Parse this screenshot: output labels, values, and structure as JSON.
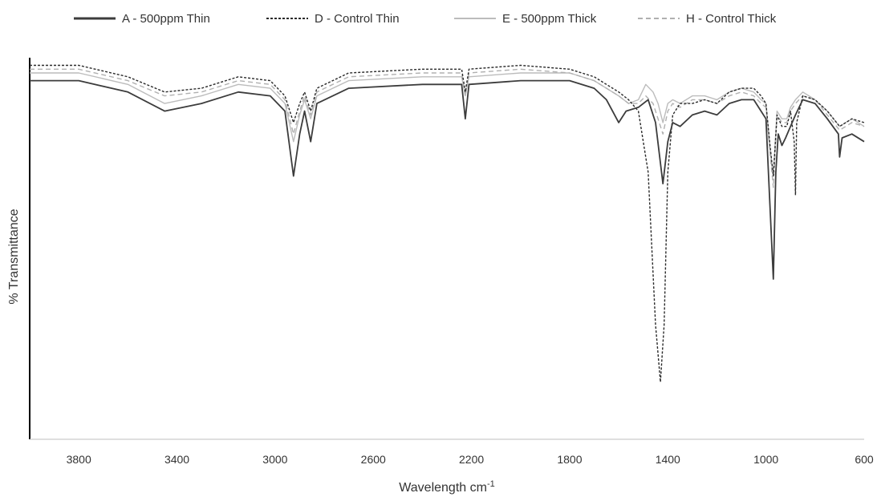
{
  "chart_data": {
    "type": "line",
    "title": "",
    "xlabel": "Wavelength cm",
    "xlabel_superscript": "-1",
    "ylabel": "% Transmittance",
    "xlim": [
      4000,
      600
    ],
    "x_reversed": true,
    "ylim": [
      0,
      100
    ],
    "y_tick_labels_shown": false,
    "grid": false,
    "legend_position": "top",
    "x_ticks": [
      3800,
      3400,
      3000,
      2600,
      2200,
      1800,
      1400,
      1000,
      600
    ],
    "series": [
      {
        "name": "A - 500ppm Thin",
        "color": "#3c3c3c",
        "dash": "solid",
        "points": [
          [
            4000,
            94
          ],
          [
            3800,
            94
          ],
          [
            3600,
            91
          ],
          [
            3450,
            86
          ],
          [
            3300,
            88
          ],
          [
            3150,
            91
          ],
          [
            3020,
            90
          ],
          [
            2960,
            86
          ],
          [
            2925,
            69
          ],
          [
            2900,
            80
          ],
          [
            2880,
            86
          ],
          [
            2855,
            78
          ],
          [
            2830,
            88
          ],
          [
            2700,
            92
          ],
          [
            2400,
            93
          ],
          [
            2240,
            93
          ],
          [
            2225,
            84
          ],
          [
            2210,
            93
          ],
          [
            2000,
            94
          ],
          [
            1800,
            94
          ],
          [
            1700,
            92
          ],
          [
            1650,
            89
          ],
          [
            1600,
            83
          ],
          [
            1570,
            86
          ],
          [
            1520,
            87
          ],
          [
            1480,
            89
          ],
          [
            1450,
            83
          ],
          [
            1420,
            67
          ],
          [
            1400,
            78
          ],
          [
            1380,
            83
          ],
          [
            1350,
            82
          ],
          [
            1300,
            85
          ],
          [
            1250,
            86
          ],
          [
            1200,
            85
          ],
          [
            1150,
            88
          ],
          [
            1100,
            89
          ],
          [
            1050,
            89
          ],
          [
            1020,
            86
          ],
          [
            1000,
            84
          ],
          [
            985,
            63
          ],
          [
            970,
            42
          ],
          [
            960,
            70
          ],
          [
            950,
            80
          ],
          [
            935,
            77
          ],
          [
            920,
            79
          ],
          [
            900,
            82
          ],
          [
            880,
            85
          ],
          [
            850,
            89
          ],
          [
            800,
            88
          ],
          [
            750,
            84
          ],
          [
            705,
            80
          ],
          [
            700,
            74
          ],
          [
            690,
            79
          ],
          [
            650,
            80
          ],
          [
            600,
            78
          ]
        ]
      },
      {
        "name": "D - Control Thin",
        "color": "#2a2a2a",
        "dash": "3,2",
        "points": [
          [
            4000,
            98
          ],
          [
            3800,
            98
          ],
          [
            3600,
            95
          ],
          [
            3450,
            91
          ],
          [
            3300,
            92
          ],
          [
            3150,
            95
          ],
          [
            3020,
            94
          ],
          [
            2960,
            90
          ],
          [
            2925,
            83
          ],
          [
            2900,
            88
          ],
          [
            2880,
            91
          ],
          [
            2855,
            86
          ],
          [
            2830,
            92
          ],
          [
            2700,
            96
          ],
          [
            2400,
            97
          ],
          [
            2240,
            97
          ],
          [
            2225,
            91
          ],
          [
            2210,
            97
          ],
          [
            2000,
            98
          ],
          [
            1800,
            97
          ],
          [
            1700,
            95
          ],
          [
            1600,
            91
          ],
          [
            1560,
            89
          ],
          [
            1520,
            86
          ],
          [
            1480,
            70
          ],
          [
            1450,
            30
          ],
          [
            1430,
            15
          ],
          [
            1415,
            30
          ],
          [
            1400,
            70
          ],
          [
            1380,
            85
          ],
          [
            1350,
            88
          ],
          [
            1300,
            88
          ],
          [
            1250,
            89
          ],
          [
            1200,
            88
          ],
          [
            1150,
            91
          ],
          [
            1100,
            92
          ],
          [
            1050,
            92
          ],
          [
            1020,
            90
          ],
          [
            1000,
            88
          ],
          [
            985,
            78
          ],
          [
            970,
            69
          ],
          [
            955,
            85
          ],
          [
            935,
            82
          ],
          [
            915,
            82
          ],
          [
            900,
            86
          ],
          [
            885,
            78
          ],
          [
            880,
            64
          ],
          [
            875,
            83
          ],
          [
            850,
            90
          ],
          [
            800,
            89
          ],
          [
            750,
            86
          ],
          [
            700,
            82
          ],
          [
            650,
            84
          ],
          [
            600,
            83
          ]
        ]
      },
      {
        "name": "E - 500ppm Thick",
        "color": "#bcbcbc",
        "dash": "solid",
        "points": [
          [
            4000,
            96
          ],
          [
            3800,
            96
          ],
          [
            3600,
            93
          ],
          [
            3450,
            88
          ],
          [
            3300,
            90
          ],
          [
            3150,
            93
          ],
          [
            3020,
            92
          ],
          [
            2960,
            88
          ],
          [
            2925,
            78
          ],
          [
            2900,
            85
          ],
          [
            2880,
            89
          ],
          [
            2855,
            84
          ],
          [
            2830,
            90
          ],
          [
            2700,
            94
          ],
          [
            2400,
            95
          ],
          [
            2240,
            95
          ],
          [
            2225,
            90
          ],
          [
            2210,
            95
          ],
          [
            2000,
            96
          ],
          [
            1800,
            96
          ],
          [
            1700,
            94
          ],
          [
            1600,
            90
          ],
          [
            1560,
            88
          ],
          [
            1520,
            89
          ],
          [
            1490,
            93
          ],
          [
            1460,
            91
          ],
          [
            1440,
            88
          ],
          [
            1420,
            83
          ],
          [
            1400,
            88
          ],
          [
            1380,
            89
          ],
          [
            1350,
            88
          ],
          [
            1300,
            90
          ],
          [
            1250,
            90
          ],
          [
            1200,
            89
          ],
          [
            1150,
            91
          ],
          [
            1100,
            92
          ],
          [
            1050,
            91
          ],
          [
            1020,
            89
          ],
          [
            1000,
            88
          ],
          [
            985,
            77
          ],
          [
            970,
            69
          ],
          [
            955,
            86
          ],
          [
            935,
            84
          ],
          [
            915,
            84
          ],
          [
            900,
            87
          ],
          [
            880,
            89
          ],
          [
            850,
            91
          ],
          [
            800,
            89
          ],
          [
            750,
            86
          ],
          [
            700,
            82
          ],
          [
            650,
            84
          ],
          [
            600,
            82
          ]
        ]
      },
      {
        "name": "H - Control Thick",
        "color": "#b0b0b0",
        "dash": "6,4",
        "points": [
          [
            4000,
            97
          ],
          [
            3800,
            97
          ],
          [
            3600,
            94
          ],
          [
            3450,
            90
          ],
          [
            3300,
            91
          ],
          [
            3150,
            94
          ],
          [
            3020,
            93
          ],
          [
            2960,
            89
          ],
          [
            2925,
            80
          ],
          [
            2900,
            86
          ],
          [
            2880,
            90
          ],
          [
            2855,
            85
          ],
          [
            2830,
            91
          ],
          [
            2700,
            95
          ],
          [
            2400,
            96
          ],
          [
            2240,
            96
          ],
          [
            2225,
            90
          ],
          [
            2210,
            96
          ],
          [
            2000,
            97
          ],
          [
            1800,
            96
          ],
          [
            1700,
            94
          ],
          [
            1600,
            90
          ],
          [
            1560,
            88
          ],
          [
            1520,
            88
          ],
          [
            1490,
            90
          ],
          [
            1460,
            88
          ],
          [
            1440,
            84
          ],
          [
            1420,
            80
          ],
          [
            1400,
            86
          ],
          [
            1380,
            88
          ],
          [
            1350,
            87
          ],
          [
            1300,
            89
          ],
          [
            1250,
            89
          ],
          [
            1200,
            88
          ],
          [
            1150,
            90
          ],
          [
            1100,
            91
          ],
          [
            1050,
            90
          ],
          [
            1020,
            88
          ],
          [
            1000,
            87
          ],
          [
            985,
            76
          ],
          [
            970,
            66
          ],
          [
            955,
            85
          ],
          [
            935,
            83
          ],
          [
            915,
            83
          ],
          [
            900,
            86
          ],
          [
            880,
            88
          ],
          [
            850,
            90
          ],
          [
            800,
            89
          ],
          [
            750,
            85
          ],
          [
            700,
            81
          ],
          [
            650,
            83
          ],
          [
            600,
            82
          ]
        ]
      }
    ]
  }
}
